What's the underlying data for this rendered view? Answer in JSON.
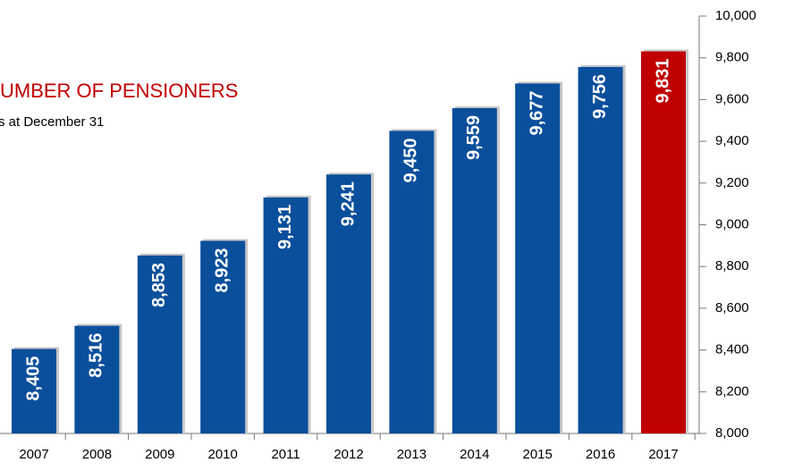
{
  "chart_data": {
    "type": "bar",
    "title": "UMBER OF PENSIONERS",
    "subtitle": "s at December 31",
    "categories": [
      "2007",
      "2008",
      "2009",
      "2010",
      "2011",
      "2012",
      "2013",
      "2014",
      "2015",
      "2016",
      "2017"
    ],
    "values": [
      8405,
      8516,
      8853,
      8923,
      9131,
      9241,
      9450,
      9559,
      9677,
      9756,
      9831
    ],
    "value_labels": [
      "8,405",
      "8,516",
      "8,853",
      "8,923",
      "9,131",
      "9,241",
      "9,450",
      "9,559",
      "9,677",
      "9,756",
      "9,831"
    ],
    "colors": [
      "#0a4f9c",
      "#0a4f9c",
      "#0a4f9c",
      "#0a4f9c",
      "#0a4f9c",
      "#0a4f9c",
      "#0a4f9c",
      "#0a4f9c",
      "#0a4f9c",
      "#0a4f9c",
      "#c00000"
    ],
    "ylim": [
      8000,
      10000
    ],
    "yticks": [
      {
        "value": 8000,
        "label": "8,000"
      },
      {
        "value": 8200,
        "label": "8,200"
      },
      {
        "value": 8400,
        "label": "8,400"
      },
      {
        "value": 8600,
        "label": "8,600"
      },
      {
        "value": 8800,
        "label": "8,800"
      },
      {
        "value": 9000,
        "label": "9,000"
      },
      {
        "value": 9200,
        "label": "9,200"
      },
      {
        "value": 9400,
        "label": "9,400"
      },
      {
        "value": 9600,
        "label": "9,600"
      },
      {
        "value": 9800,
        "label": "9,800"
      },
      {
        "value": 10000,
        "label": "10,000"
      }
    ],
    "y_axis_side": "right",
    "title_color": "#c00000"
  }
}
